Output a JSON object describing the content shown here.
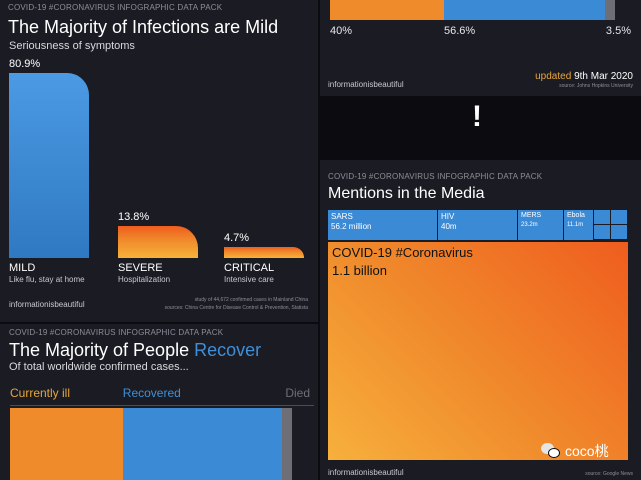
{
  "panel_infections": {
    "header": "COVID-19 #CORONAVIRUS INFOGRAPHIC DATA PACK",
    "title": "The Majority of Infections are Mild",
    "subtitle": "Seriousness of symptoms",
    "brand": "informationisbeautiful",
    "footnote_1": "study of 44,672 confirmed cases in Mainland China",
    "footnote_2": "sources: China Centre for Disease Control & Prevention, Statista"
  },
  "panel_recover": {
    "header": "COVID-19 #CORONAVIRUS INFOGRAPHIC DATA PACK",
    "title_main": "The Majority of People ",
    "title_accent": "Recover",
    "subtitle": "Of total worldwide confirmed cases..."
  },
  "panel_recover_bottom": {
    "brand": "informationisbeautiful",
    "updated_prefix": "updated ",
    "updated_date": "9th Mar 2020",
    "source": "source: Johns Hopkins University"
  },
  "separator": {
    "symbol": "!"
  },
  "panel_media": {
    "header": "COVID-19 #CORONAVIRUS INFOGRAPHIC DATA PACK",
    "title": "Mentions in the Media",
    "brand": "informationisbeautiful",
    "source": "source: Google News"
  },
  "watermark": {
    "text": "coco桃"
  },
  "colors": {
    "mild_blue": "#3b8ad6",
    "orange": "#f08b2c",
    "orange_red": "#ef5d1e",
    "died_gray": "#6e6f76"
  },
  "chart_data": [
    {
      "type": "bar",
      "title": "The Majority of Infections are Mild",
      "subtitle": "Seriousness of symptoms",
      "categories": [
        "MILD",
        "SEVERE",
        "CRITICAL"
      ],
      "descriptions": [
        "Like flu, stay at home",
        "Hospitalization",
        "Intensive care"
      ],
      "values": [
        80.9,
        13.8,
        4.7
      ],
      "value_labels": [
        "80.9%",
        "13.8%",
        "4.7%"
      ],
      "ylim": [
        0,
        80.9
      ]
    },
    {
      "type": "bar",
      "title": "The Majority of People Recover",
      "subtitle": "Of total worldwide confirmed cases...",
      "categories": [
        "Currently ill",
        "Recovered",
        "Died"
      ],
      "values": [
        40,
        56.6,
        3.5
      ],
      "value_labels": [
        "40%",
        "56.6%",
        "3.5%"
      ]
    },
    {
      "type": "heatmap",
      "title": "Mentions in the Media",
      "items": [
        {
          "name": "SARS",
          "value_label": "56.2 million",
          "value": 56.2
        },
        {
          "name": "HIV",
          "value_label": "40m",
          "value": 40
        },
        {
          "name": "MERS",
          "value_label": "23.2m",
          "value": 23.2
        },
        {
          "name": "Ebola",
          "value_label": "11.1m",
          "value": 11.1
        },
        {
          "name": "COVID-19 #Coronavirus",
          "value_label": "1.1 billion",
          "value": 1100
        }
      ]
    }
  ]
}
